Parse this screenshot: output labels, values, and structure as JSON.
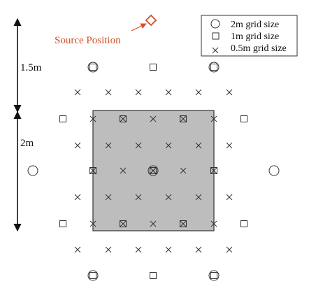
{
  "labels": {
    "source": "Source Position",
    "dim_top": "1.5m",
    "dim_side": "2m"
  },
  "legend": {
    "items": [
      {
        "symbol": "circle",
        "label": "2m grid size"
      },
      {
        "symbol": "square",
        "label": "1m grid size"
      },
      {
        "symbol": "cross",
        "label": "0.5m grid size"
      }
    ]
  },
  "colors": {
    "source_accent": "#d2502a",
    "region_fill": "#bdbdbd",
    "stroke": "#333333",
    "text": "#111111"
  }
}
